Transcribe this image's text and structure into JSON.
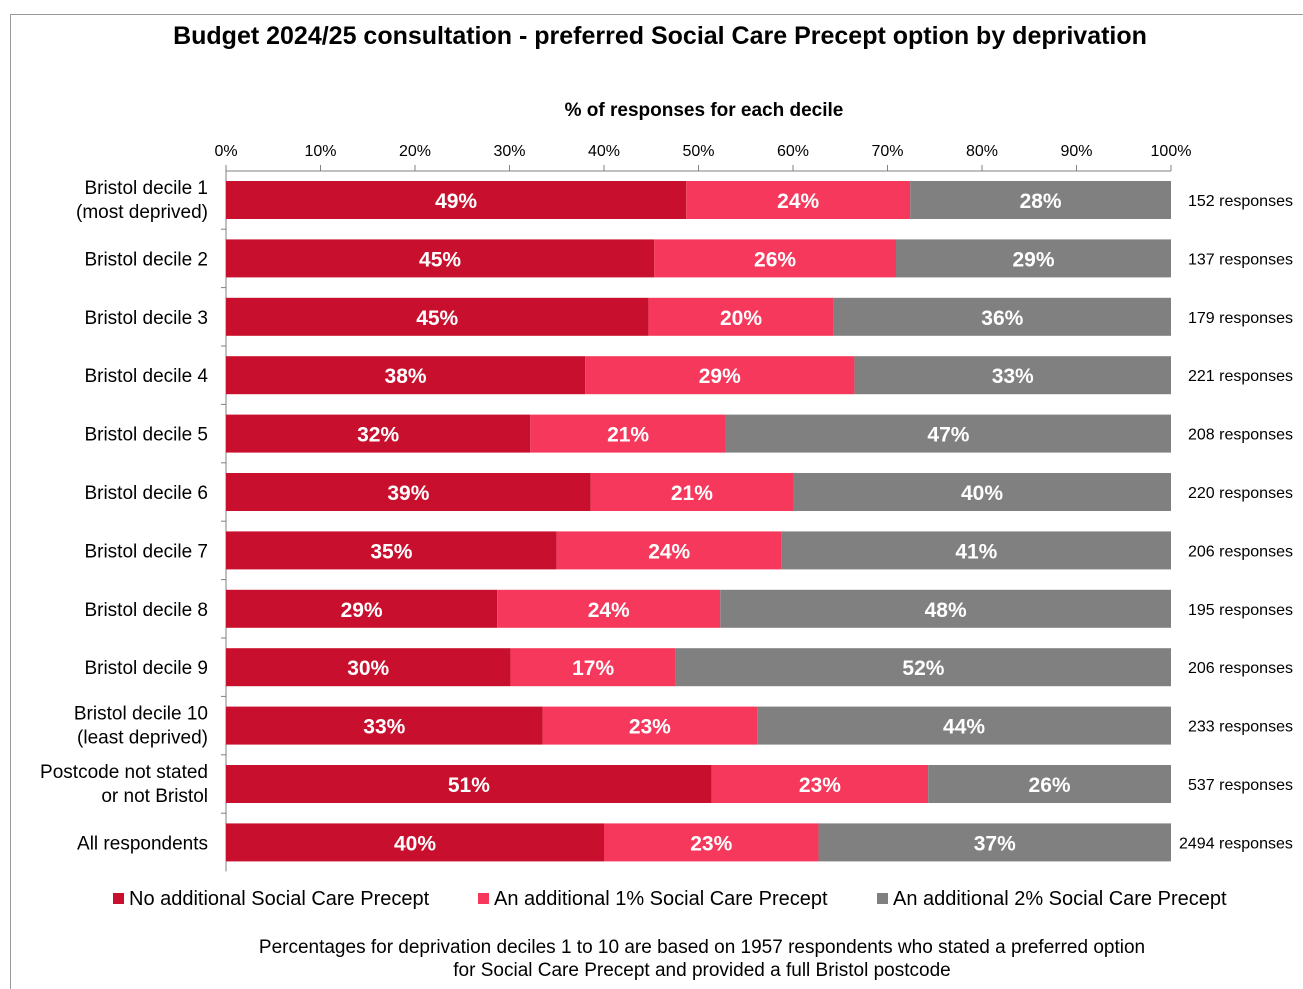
{
  "chart_data": {
    "type": "bar",
    "orientation": "horizontal",
    "stacked": true,
    "title": "Budget 2024/25 consultation - preferred Social Care Precept option by deprivation",
    "xlabel": "% of responses for each decile",
    "xlim": [
      0,
      100
    ],
    "x_ticks": [
      "0%",
      "10%",
      "20%",
      "30%",
      "40%",
      "50%",
      "60%",
      "70%",
      "80%",
      "90%",
      "100%"
    ],
    "categories": [
      [
        "Bristol decile 1",
        "(most deprived)"
      ],
      [
        "Bristol decile 2"
      ],
      [
        "Bristol decile 3"
      ],
      [
        "Bristol decile 4"
      ],
      [
        "Bristol decile 5"
      ],
      [
        "Bristol decile 6"
      ],
      [
        "Bristol decile 7"
      ],
      [
        "Bristol decile 8"
      ],
      [
        "Bristol decile 9"
      ],
      [
        "Bristol decile 10",
        "(least deprived)"
      ],
      [
        "Postcode not stated",
        "or not Bristol"
      ],
      [
        "All respondents"
      ]
    ],
    "responses": [
      "152 responses",
      "137 responses",
      "179 responses",
      "221 responses",
      "208 responses",
      "220 responses",
      "206 responses",
      "195 responses",
      "206 responses",
      "233 responses",
      "537 responses",
      "2494 responses"
    ],
    "series": [
      {
        "name": "No additional Social Care Precept",
        "color": "#c8102e",
        "values": [
          48.7,
          45.3,
          44.7,
          38.0,
          32.2,
          38.6,
          35.0,
          28.7,
          30.1,
          33.5,
          51.4,
          40.0
        ],
        "labels": [
          "49%",
          "45%",
          "45%",
          "38%",
          "32%",
          "39%",
          "35%",
          "29%",
          "30%",
          "33%",
          "51%",
          "40%"
        ]
      },
      {
        "name": "An additional 1% Social Care Precept",
        "color": "#f5385c",
        "values": [
          23.7,
          25.6,
          19.6,
          28.5,
          20.7,
          21.4,
          23.8,
          23.6,
          17.5,
          22.7,
          22.9,
          22.7
        ],
        "labels": [
          "24%",
          "26%",
          "20%",
          "29%",
          "21%",
          "21%",
          "24%",
          "24%",
          "17%",
          "23%",
          "23%",
          "23%"
        ]
      },
      {
        "name": "An additional 2% Social Care Precept",
        "color": "#808080",
        "values": [
          27.6,
          29.1,
          35.7,
          33.5,
          47.1,
          40.0,
          41.2,
          47.7,
          52.4,
          43.8,
          25.7,
          37.3
        ],
        "labels": [
          "28%",
          "29%",
          "36%",
          "33%",
          "47%",
          "40%",
          "41%",
          "48%",
          "52%",
          "44%",
          "26%",
          "37%"
        ]
      }
    ],
    "legend_position": "bottom",
    "grid": false
  },
  "footnote": [
    "Percentages for deprivation deciles 1 to 10 are based on 1957 respondents who stated a preferred option",
    "for Social Care Precept and provided a full Bristol postcode"
  ]
}
